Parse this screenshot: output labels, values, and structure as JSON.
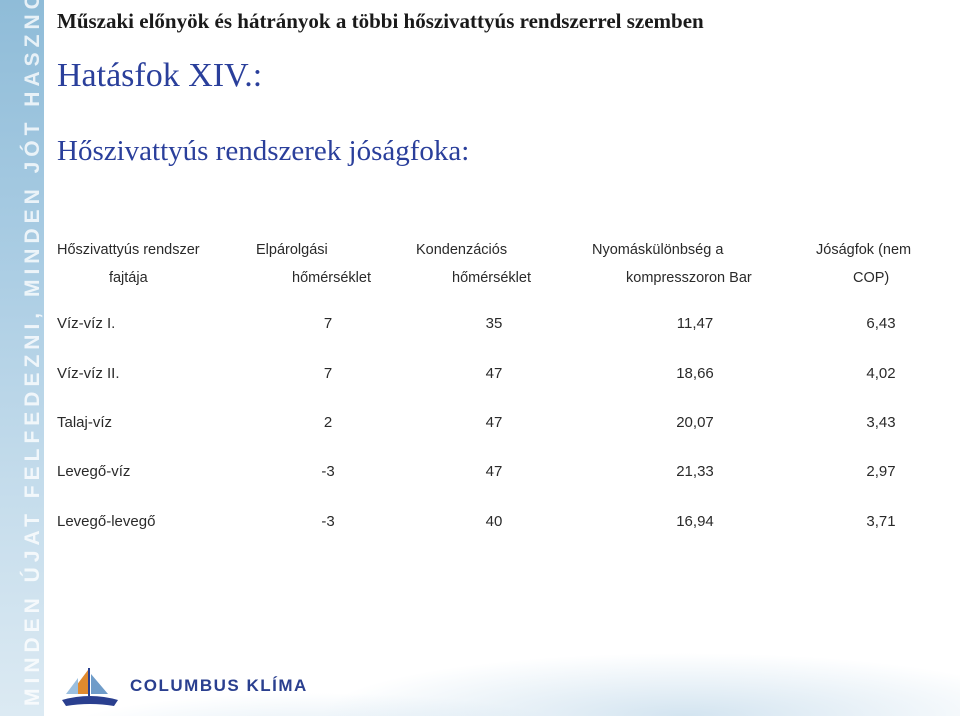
{
  "side_slogan": "MINDEN ÚJAT FELFEDEZNI, MINDEN JÓT HASZNOSÍTANI...",
  "subtitle": "Műszaki előnyök és hátrányok a többi hőszivattyús rendszerrel szemben",
  "section_title": "Hatásfok XIV.:",
  "heading": "Hőszivattyús rendszerek jóságfoka:",
  "table": {
    "headers": [
      [
        "Hőszivattyús rendszer",
        "fajtája"
      ],
      [
        "Elpárolgási",
        "hőmérséklet"
      ],
      [
        "Kondenzációs",
        "hőmérséklet"
      ],
      [
        "Nyomáskülönbség a",
        "kompresszoron Bar"
      ],
      [
        "Jóságfok  (nem",
        "COP)"
      ]
    ],
    "rows": [
      [
        "Víz-víz I.",
        "7",
        "35",
        "11,47",
        "6,43"
      ],
      [
        "Víz-víz II.",
        "7",
        "47",
        "18,66",
        "4,02"
      ],
      [
        "Talaj-víz",
        "2",
        "47",
        "20,07",
        "3,43"
      ],
      [
        "Levegő-víz",
        "-3",
        "47",
        "21,33",
        "2,97"
      ],
      [
        "Levegő-levegő",
        "-3",
        "40",
        "16,94",
        "3,71"
      ]
    ]
  },
  "logo": {
    "text": "COLUMBUS KLÍMA",
    "colors": {
      "brand": "#2a3f8f",
      "accent": "#e08a2e",
      "sky": "#8fbcd8"
    }
  }
}
